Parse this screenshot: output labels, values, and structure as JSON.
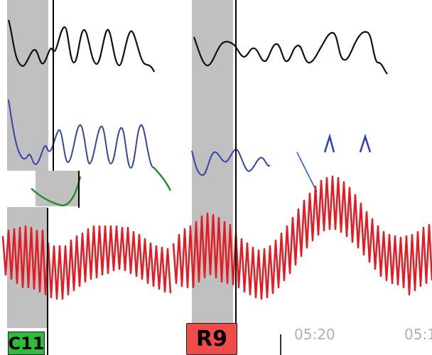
{
  "colors": {
    "background": "#ffffff",
    "shade": "#c0c0c0",
    "cursor": "#000000",
    "trace_black": "#111111",
    "trace_blue": "#3346a8",
    "trace_green": "#1f8f2a",
    "trace_red": "#e31b23",
    "pointer_line": "#2a5bd7",
    "badge_left_bg": "#2ebd3b",
    "badge_right_bg": "#ef4c49",
    "time_label": "#b0b0b0"
  },
  "markers": {
    "left_label": "C11",
    "right_label": "R9"
  },
  "time_labels": [
    "05:20",
    "05:1"
  ]
}
